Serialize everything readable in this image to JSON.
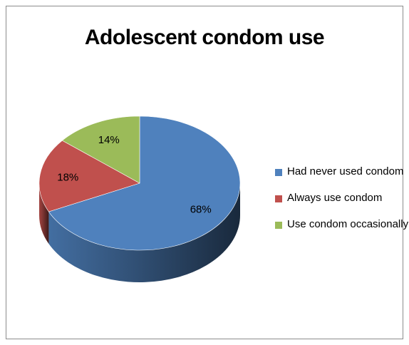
{
  "chart_data": {
    "type": "pie",
    "title": "Adolescent condom use",
    "categories": [
      "Had never used condom",
      "Always use condom",
      "Use condom occasionally"
    ],
    "values": [
      68,
      18,
      14
    ],
    "data_labels": [
      "68%",
      "18%",
      "14%"
    ],
    "colors": [
      "#4F81BD",
      "#C0504D",
      "#9BBB59"
    ],
    "legend_position": "right",
    "style": "3d"
  }
}
